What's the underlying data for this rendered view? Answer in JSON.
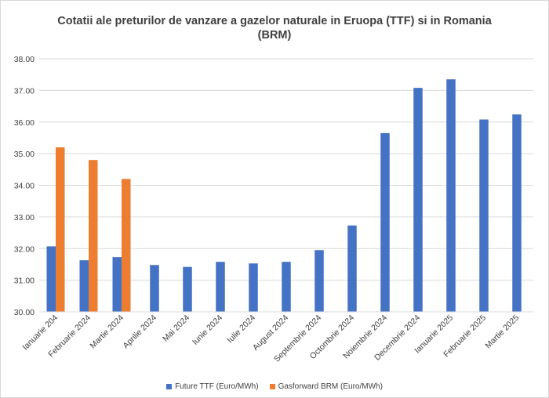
{
  "chart_data": {
    "type": "bar",
    "title_line1": "Cotatii ale preturilor de vanzare a gazelor naturale in Eruopa (TTF) si in Romania",
    "title_line2": "(BRM)",
    "categories": [
      "Ianuarie 204",
      "Februarie 2024",
      "Martie 2024",
      "Aprilie 2024",
      "Mai 2024",
      "Iunie 2024",
      "Iulie 2024",
      "August 2024",
      "Septembrie 2024",
      "Octombrie 2024",
      "Noiembrie 2024",
      "Decembrie 2024",
      "Ianuarie 2025",
      "Februarie 2025",
      "Martie 2025"
    ],
    "series": [
      {
        "name": "Future TTF (Euro/MWh)",
        "color": "#4472c4",
        "values": [
          32.07,
          31.63,
          31.73,
          31.48,
          31.42,
          31.58,
          31.53,
          31.58,
          31.95,
          32.73,
          35.65,
          37.08,
          37.35,
          36.08,
          36.24
        ]
      },
      {
        "name": "Gasforward BRM (Euro/MWh)",
        "color": "#ed7d31",
        "values": [
          35.2,
          34.8,
          34.2,
          null,
          null,
          null,
          null,
          null,
          null,
          null,
          null,
          null,
          null,
          null,
          null
        ]
      }
    ],
    "ylim": [
      30,
      38
    ],
    "yticks": [
      "30.00",
      "31.00",
      "32.00",
      "33.00",
      "34.00",
      "35.00",
      "36.00",
      "37.00",
      "38.00"
    ],
    "grid": true,
    "legend_position": "bottom"
  }
}
